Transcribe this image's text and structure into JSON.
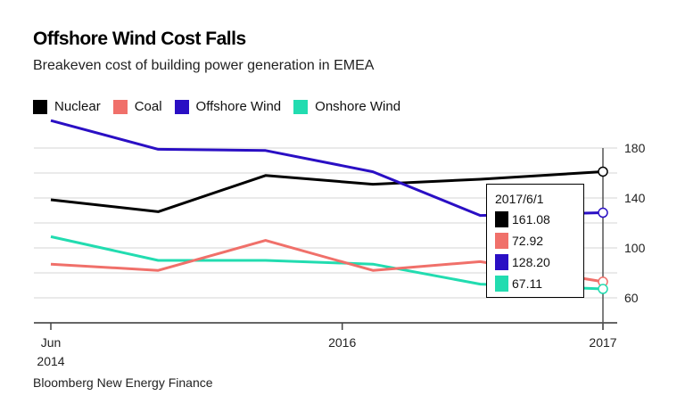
{
  "chart_data": {
    "type": "line",
    "title": "Offshore Wind Cost Falls",
    "subtitle": "Breakeven cost of building power generation in EMEA",
    "source": "Bloomberg New Energy Finance",
    "x": [
      "2014-06",
      "2015-01",
      "2015-08",
      "2016-03",
      "2016-10",
      "2017-06"
    ],
    "x_ticks": [
      {
        "date": "2014-06",
        "label": "Jun",
        "label2": "2014"
      },
      {
        "date": "2016-01",
        "label": "2016",
        "label2": ""
      },
      {
        "date": "2017-06",
        "label": "2017",
        "label2": ""
      }
    ],
    "y_ticks": [
      60,
      100,
      140,
      180
    ],
    "ylim": [
      40,
      202
    ],
    "grid": true,
    "legend_placement": "top-left",
    "series": [
      {
        "name": "Nuclear",
        "color": "#000000",
        "values": [
          138.6,
          129,
          158,
          151,
          155,
          161.08
        ]
      },
      {
        "name": "Coal",
        "color": "#f0706a",
        "values": [
          87,
          82,
          106,
          82,
          89,
          72.92
        ]
      },
      {
        "name": "Offshore Wind",
        "color": "#2a0fc4",
        "values": [
          202,
          179,
          178,
          161,
          126,
          128.2
        ]
      },
      {
        "name": "Onshore Wind",
        "color": "#22dcb0",
        "values": [
          109,
          90,
          90,
          87,
          71,
          67.11
        ]
      }
    ],
    "tooltip": {
      "date": "2017/6/1",
      "values": [
        "161.08",
        "72.92",
        "128.20",
        "67.11"
      ]
    }
  }
}
